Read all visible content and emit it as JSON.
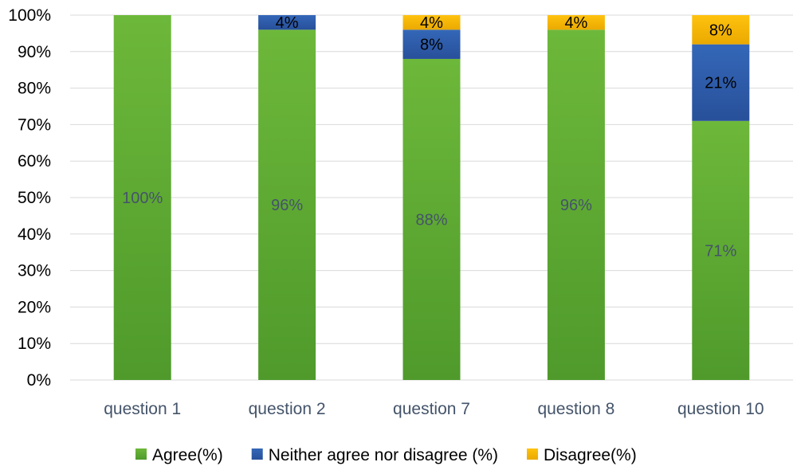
{
  "chart_data": {
    "type": "bar",
    "stacked": true,
    "categories": [
      "question 1",
      "question 2",
      "question 7",
      "question 8",
      "question 10"
    ],
    "series": [
      {
        "name": "Agree(%)",
        "color": "#5fa532",
        "values": [
          100,
          96,
          88,
          96,
          71
        ],
        "labels": [
          "100%",
          "96%",
          "88%",
          "96%",
          "71%"
        ]
      },
      {
        "name": "Neither agree nor disagree (%)",
        "color": "#2e5ca8",
        "values": [
          0,
          4,
          8,
          0,
          21
        ],
        "labels": [
          "",
          "4%",
          "8%",
          "",
          "21%"
        ]
      },
      {
        "name": "Disagree(%)",
        "color": "#f5b800",
        "values": [
          0,
          0,
          4,
          4,
          8
        ],
        "labels": [
          "",
          "",
          "4%",
          "4%",
          "8%"
        ]
      }
    ],
    "yticks": [
      "0%",
      "10%",
      "20%",
      "30%",
      "40%",
      "50%",
      "60%",
      "70%",
      "80%",
      "90%",
      "100%"
    ],
    "ylim": [
      0,
      100
    ],
    "grid": true,
    "legend_position": "bottom",
    "title": "",
    "xlabel": "",
    "ylabel": ""
  }
}
